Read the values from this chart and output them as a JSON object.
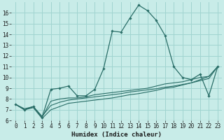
{
  "xlabel": "Humidex (Indice chaleur)",
  "background_color": "#c8ece8",
  "grid_color": "#a0d4d0",
  "line_color": "#2a6e68",
  "x_values": [
    0,
    1,
    2,
    3,
    4,
    5,
    6,
    7,
    8,
    9,
    10,
    11,
    12,
    13,
    14,
    15,
    16,
    17,
    18,
    19,
    20,
    21,
    22,
    23
  ],
  "main_line": [
    7.5,
    7.0,
    7.3,
    6.3,
    8.9,
    9.0,
    9.2,
    8.3,
    8.3,
    8.9,
    10.8,
    14.3,
    14.2,
    15.5,
    16.7,
    16.2,
    15.3,
    13.9,
    11.0,
    10.0,
    9.8,
    10.3,
    8.3,
    11.0
  ],
  "line2": [
    7.5,
    7.0,
    7.3,
    6.3,
    7.8,
    8.0,
    8.1,
    8.1,
    8.2,
    8.4,
    8.5,
    8.6,
    8.7,
    8.8,
    8.9,
    9.0,
    9.2,
    9.4,
    9.5,
    9.6,
    9.8,
    10.0,
    10.1,
    11.0
  ],
  "line3": [
    7.5,
    7.1,
    7.3,
    6.4,
    7.4,
    7.7,
    7.9,
    8.0,
    8.1,
    8.2,
    8.3,
    8.4,
    8.5,
    8.65,
    8.75,
    8.85,
    8.95,
    9.1,
    9.2,
    9.35,
    9.5,
    9.7,
    9.9,
    11.0
  ],
  "line4": [
    7.5,
    7.0,
    7.2,
    6.2,
    7.0,
    7.3,
    7.6,
    7.7,
    7.8,
    7.9,
    8.0,
    8.1,
    8.25,
    8.4,
    8.5,
    8.65,
    8.8,
    9.0,
    9.1,
    9.3,
    9.5,
    9.8,
    10.1,
    11.0
  ],
  "ylim": [
    6,
    17
  ],
  "xlim": [
    -0.5,
    23.5
  ],
  "yticks": [
    6,
    7,
    8,
    9,
    10,
    11,
    12,
    13,
    14,
    15,
    16
  ],
  "xticks": [
    0,
    1,
    2,
    3,
    4,
    5,
    6,
    7,
    8,
    9,
    10,
    11,
    12,
    13,
    14,
    15,
    16,
    17,
    18,
    19,
    20,
    21,
    22,
    23
  ],
  "tick_fontsize": 5.5,
  "xlabel_fontsize": 6.5
}
